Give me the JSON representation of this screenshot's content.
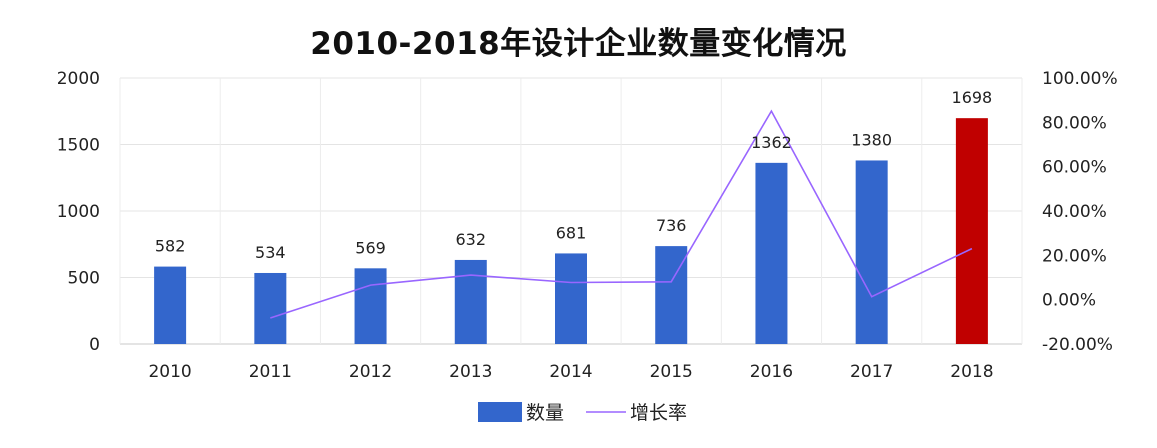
{
  "chart_data": {
    "type": "bar",
    "title": "2010-2018年设计企业数量变化情况",
    "categories": [
      "2010",
      "2011",
      "2012",
      "2013",
      "2014",
      "2015",
      "2016",
      "2017",
      "2018"
    ],
    "series": [
      {
        "name": "数量",
        "chart_type": "bar",
        "axis": "left",
        "color": "#3366cc",
        "highlight": {
          "index": 8,
          "color": "#c00000"
        },
        "values": [
          582,
          534,
          569,
          632,
          681,
          736,
          1362,
          1380,
          1698
        ],
        "data_labels": [
          "582",
          "534",
          "569",
          "632",
          "681",
          "736",
          "1362",
          "1380",
          "1698"
        ]
      },
      {
        "name": "增长率",
        "chart_type": "line",
        "axis": "right",
        "color": "#9966ff",
        "values": [
          null,
          -8.25,
          6.55,
          11.07,
          7.75,
          8.08,
          85.05,
          1.32,
          23.04
        ]
      }
    ],
    "y_left": {
      "min": 0,
      "max": 2000,
      "ticks": [
        0,
        500,
        1000,
        1500,
        2000
      ]
    },
    "y_right": {
      "min": -20,
      "max": 100,
      "ticks": [
        -20,
        0,
        20,
        40,
        60,
        80,
        100
      ],
      "tick_labels": [
        "-20.00%",
        "0.00%",
        "20.00%",
        "40.00%",
        "60.00%",
        "80.00%",
        "100.00%"
      ]
    },
    "grid": true,
    "legend": "bottom"
  }
}
